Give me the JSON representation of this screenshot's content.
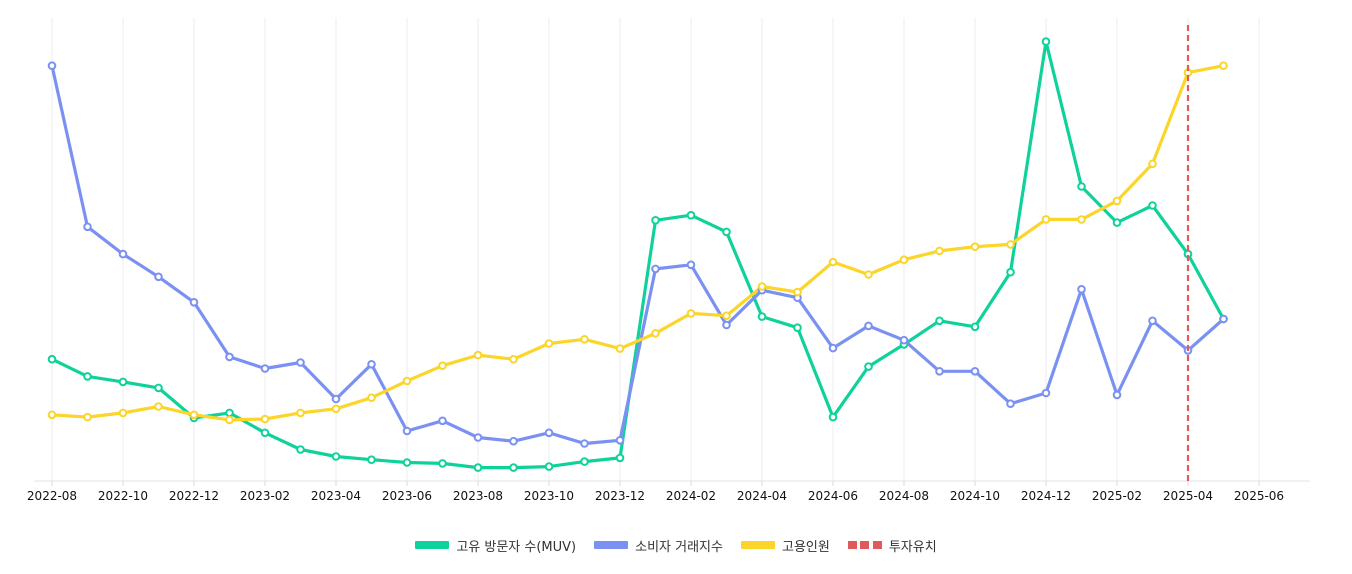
{
  "chart_data": {
    "type": "line",
    "x": [
      "2022-08",
      "2022-09",
      "2022-10",
      "2022-11",
      "2022-12",
      "2023-01",
      "2023-02",
      "2023-03",
      "2023-04",
      "2023-05",
      "2023-06",
      "2023-07",
      "2023-08",
      "2023-09",
      "2023-10",
      "2023-11",
      "2023-12",
      "2024-01",
      "2024-02",
      "2024-03",
      "2024-04",
      "2024-05",
      "2024-06",
      "2024-07",
      "2024-08",
      "2024-09",
      "2024-10",
      "2024-11",
      "2024-12",
      "2025-01",
      "2025-02",
      "2025-03",
      "2025-04",
      "2025-05"
    ],
    "x_ticks": [
      "2022-08",
      "2022-10",
      "2022-12",
      "2023-02",
      "2023-04",
      "2023-06",
      "2023-08",
      "2023-10",
      "2023-12",
      "2024-02",
      "2024-04",
      "2024-06",
      "2024-08",
      "2024-10",
      "2024-12",
      "2025-02",
      "2025-04",
      "2025-06"
    ],
    "x_range": [
      "2022-08",
      "2025-07"
    ],
    "ylim": [
      0,
      100
    ],
    "grid": "vertical",
    "y_axis_shown": false,
    "legend_position": "bottom",
    "series": [
      {
        "name": "고유 방문자 수(MUV)",
        "color": "#0fd29a",
        "values": [
          26.3,
          22.6,
          21.4,
          20.1,
          13.6,
          14.7,
          10.4,
          6.8,
          5.3,
          4.6,
          4.0,
          3.8,
          2.9,
          2.9,
          3.1,
          4.2,
          5.0,
          56.3,
          57.4,
          53.8,
          35.5,
          33.1,
          13.8,
          24.7,
          29.5,
          34.6,
          33.3,
          45.1,
          94.9,
          63.6,
          55.8,
          59.5,
          49.0,
          35.0
        ]
      },
      {
        "name": "소비자 거래지수",
        "color": "#7b91f2",
        "values": [
          89.7,
          54.9,
          49.0,
          44.1,
          38.6,
          26.8,
          24.3,
          25.6,
          17.7,
          25.2,
          10.8,
          13.0,
          9.4,
          8.6,
          10.4,
          8.1,
          8.8,
          45.8,
          46.7,
          33.7,
          41.2,
          39.6,
          28.7,
          33.5,
          30.4,
          23.7,
          23.7,
          16.7,
          19.0,
          41.4,
          18.6,
          34.6,
          28.2,
          35.0
        ]
      },
      {
        "name": "고용인원",
        "color": "#fbd52a",
        "values": [
          14.3,
          13.8,
          14.7,
          16.1,
          14.3,
          13.2,
          13.4,
          14.7,
          15.6,
          18.0,
          21.6,
          24.9,
          27.2,
          26.3,
          29.7,
          30.6,
          28.6,
          31.9,
          36.2,
          35.7,
          42.0,
          40.8,
          47.3,
          44.6,
          47.8,
          49.7,
          50.6,
          51.1,
          56.5,
          56.5,
          60.5,
          68.5,
          88.2,
          89.7
        ]
      }
    ],
    "annotations": [
      {
        "name": "투자유치",
        "x": "2025-04",
        "style": "dashed-vertical",
        "color": "#e05a5a"
      }
    ]
  }
}
